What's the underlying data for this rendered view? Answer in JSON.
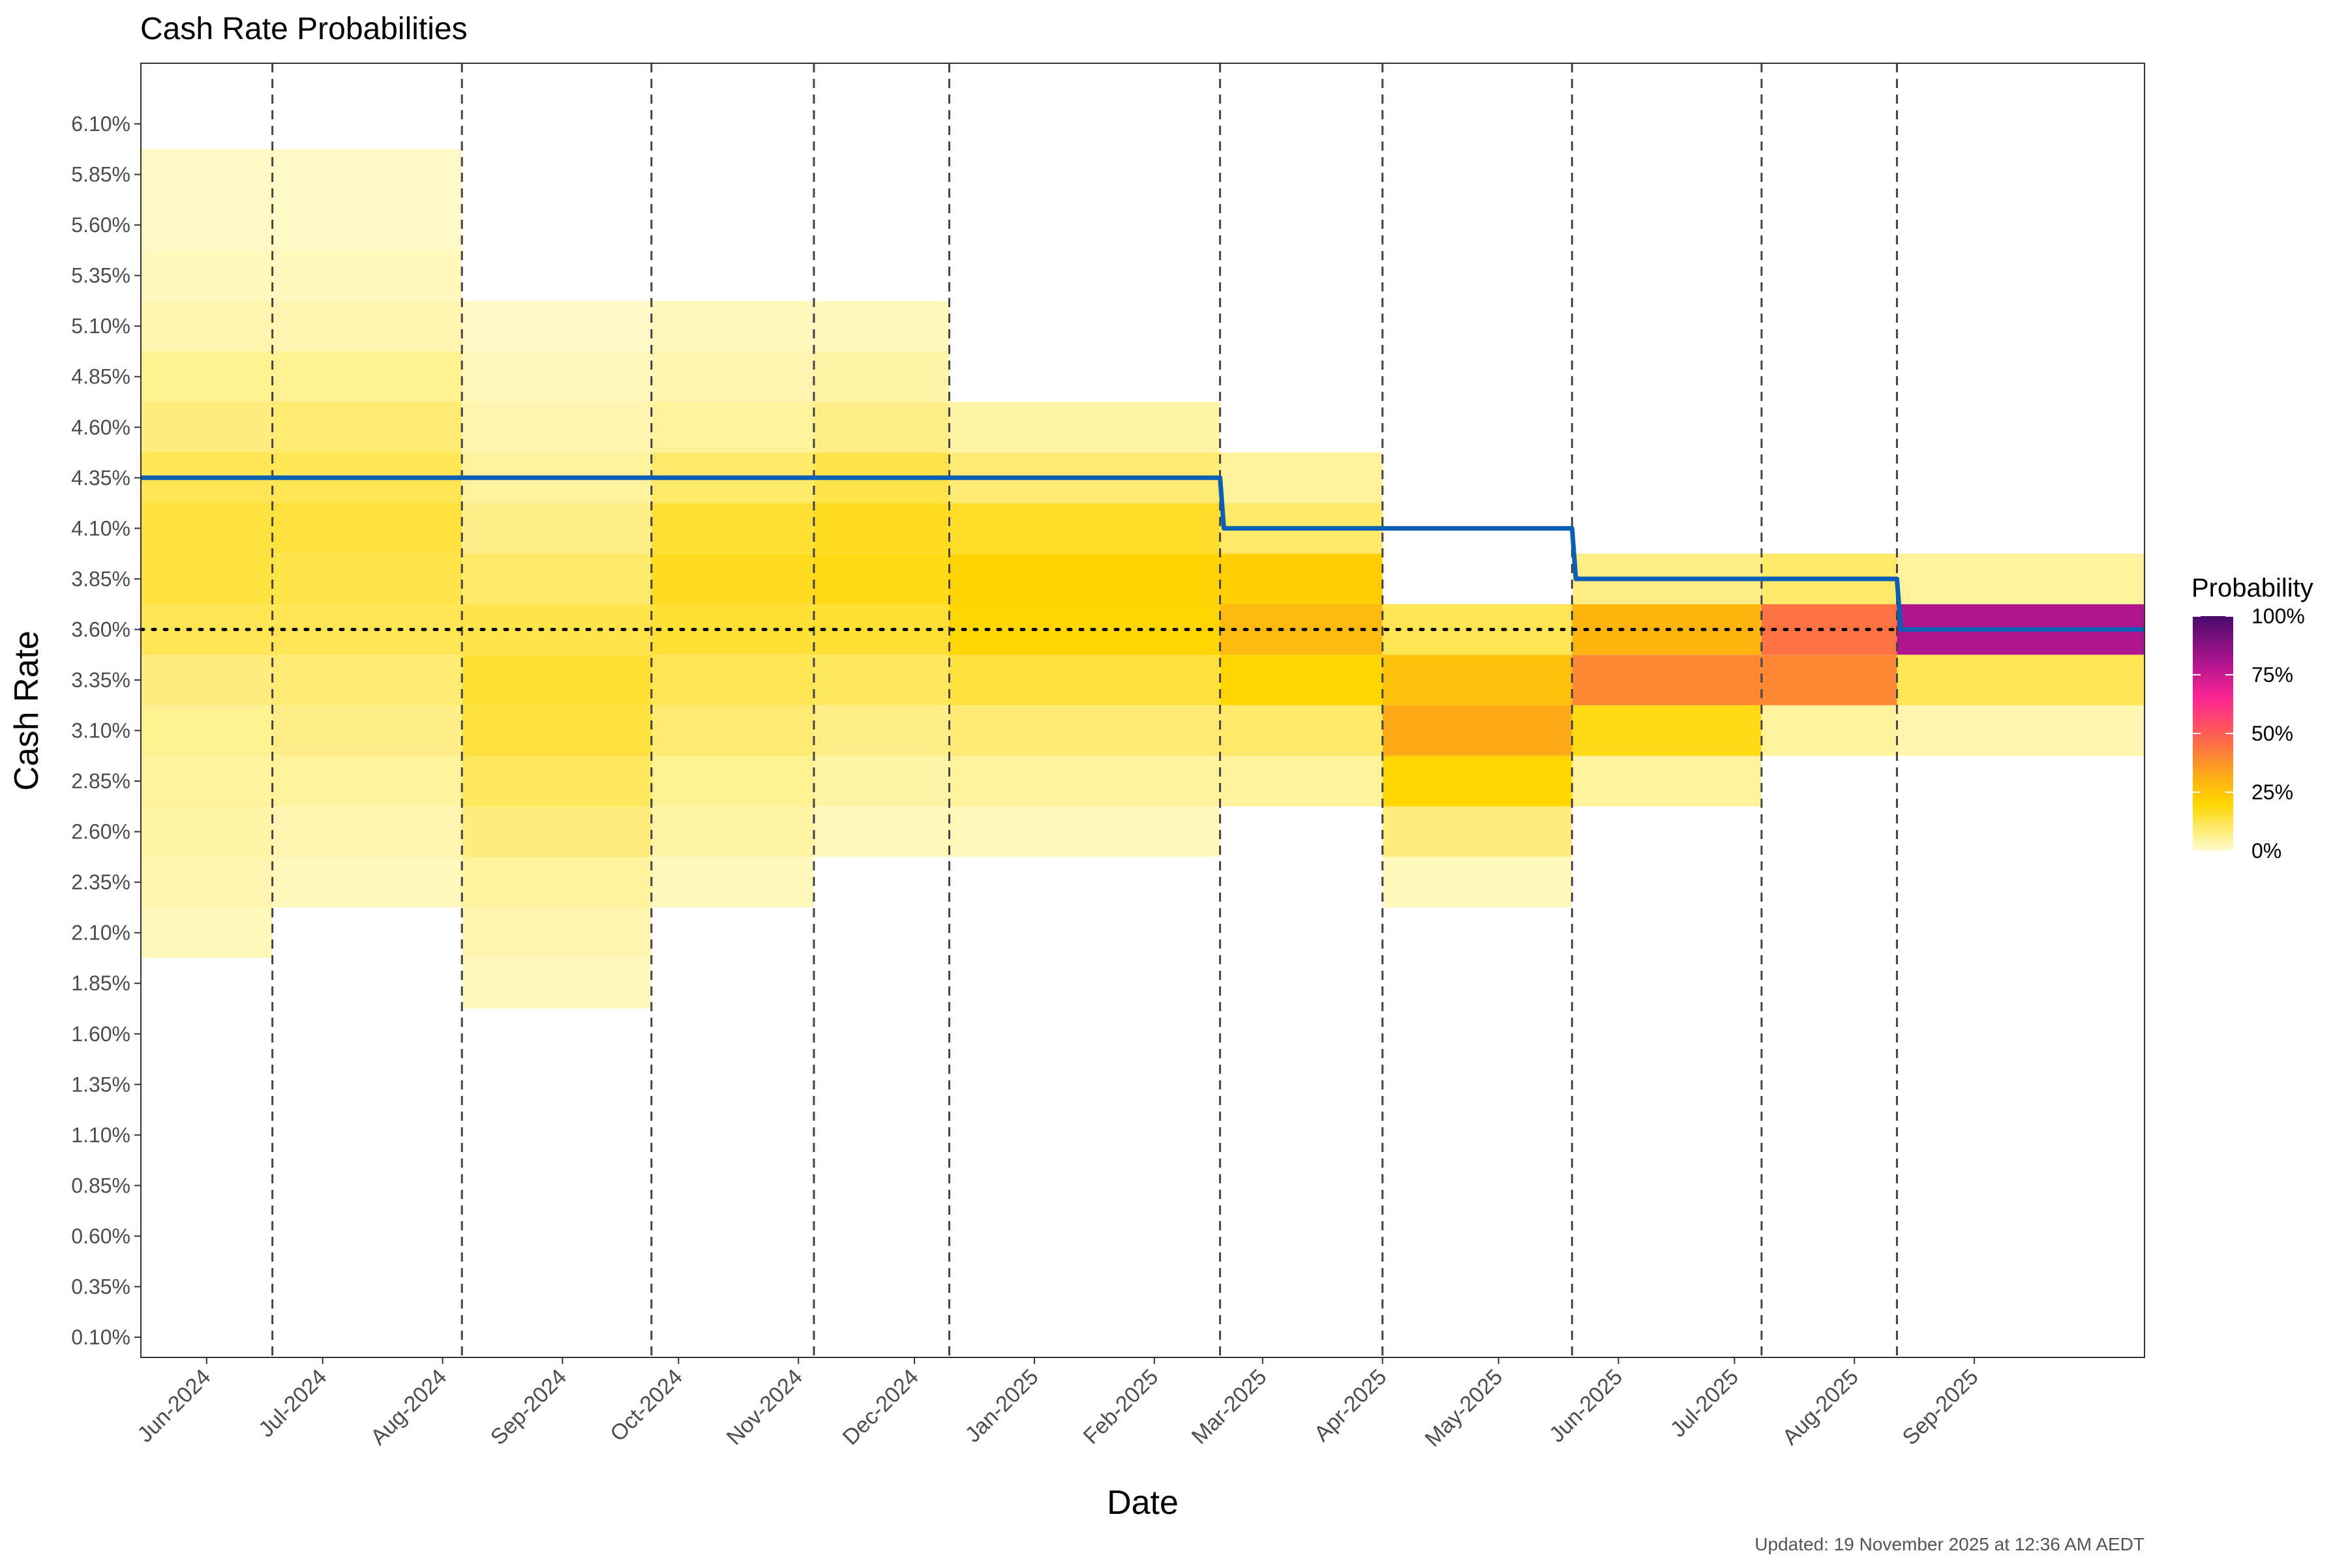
{
  "chart_data": {
    "type": "heatmap",
    "title": "Cash Rate Probabilities",
    "xlabel": "Date",
    "ylabel": "Cash Rate",
    "legend_title": "Probability",
    "legend_ticks": [
      "100%",
      "75%",
      "50%",
      "25%",
      "0%"
    ],
    "legend_position": "right",
    "caption": "Updated: 19 November 2025 at 12:36 AM AEDT",
    "x_range": [
      "2024-05-15",
      "2025-10-15"
    ],
    "y_range": [
      -0.0,
      6.4
    ],
    "x_ticks": [
      {
        "date": "2024-06-01",
        "label": "Jun-2024"
      },
      {
        "date": "2024-07-01",
        "label": "Jul-2024"
      },
      {
        "date": "2024-08-01",
        "label": "Aug-2024"
      },
      {
        "date": "2024-09-01",
        "label": "Sep-2024"
      },
      {
        "date": "2024-10-01",
        "label": "Oct-2024"
      },
      {
        "date": "2024-11-01",
        "label": "Nov-2024"
      },
      {
        "date": "2024-12-01",
        "label": "Dec-2024"
      },
      {
        "date": "2025-01-01",
        "label": "Jan-2025"
      },
      {
        "date": "2025-02-01",
        "label": "Feb-2025"
      },
      {
        "date": "2025-03-01",
        "label": "Mar-2025"
      },
      {
        "date": "2025-04-01",
        "label": "Apr-2025"
      },
      {
        "date": "2025-05-01",
        "label": "May-2025"
      },
      {
        "date": "2025-06-01",
        "label": "Jun-2025"
      },
      {
        "date": "2025-07-01",
        "label": "Jul-2025"
      },
      {
        "date": "2025-08-01",
        "label": "Aug-2025"
      },
      {
        "date": "2025-09-01",
        "label": "Sep-2025"
      }
    ],
    "y_ticks": [
      "0.10%",
      "0.35%",
      "0.60%",
      "0.85%",
      "1.10%",
      "1.35%",
      "1.60%",
      "1.85%",
      "2.10%",
      "2.35%",
      "2.60%",
      "2.85%",
      "3.10%",
      "3.35%",
      "3.60%",
      "3.85%",
      "4.10%",
      "4.35%",
      "4.60%",
      "4.85%",
      "5.10%",
      "5.35%",
      "5.60%",
      "5.85%",
      "6.10%"
    ],
    "y_tick_values": [
      0.1,
      0.35,
      0.6,
      0.85,
      1.1,
      1.35,
      1.6,
      1.85,
      2.1,
      2.35,
      2.6,
      2.85,
      3.1,
      3.35,
      3.6,
      3.85,
      4.1,
      4.35,
      4.6,
      4.85,
      5.1,
      5.35,
      5.6,
      5.85,
      6.1
    ],
    "meeting_dates": [
      "2024-06-18",
      "2024-08-06",
      "2024-09-24",
      "2024-11-05",
      "2024-12-10",
      "2025-02-18",
      "2025-04-01",
      "2025-05-20",
      "2025-07-08",
      "2025-08-12"
    ],
    "reference_line": {
      "rate": 3.6,
      "style": "dotted"
    },
    "cash_rate_series": {
      "name": "Cash rate",
      "color": "#0a5fb4",
      "points": [
        {
          "date": "2024-05-15",
          "rate": 4.35
        },
        {
          "date": "2025-02-18",
          "rate": 4.35
        },
        {
          "date": "2025-02-19",
          "rate": 4.1
        },
        {
          "date": "2025-05-20",
          "rate": 4.1
        },
        {
          "date": "2025-05-21",
          "rate": 3.85
        },
        {
          "date": "2025-08-12",
          "rate": 3.85
        },
        {
          "date": "2025-08-13",
          "rate": 3.6
        },
        {
          "date": "2025-10-15",
          "rate": 3.6
        }
      ]
    },
    "probability_bands": [
      {
        "start": "2024-05-15",
        "end": "2024-06-18",
        "rates": [
          2.1,
          2.35,
          2.6,
          2.85,
          3.1,
          3.35,
          3.6,
          3.85,
          4.1,
          4.35,
          4.6,
          4.85,
          5.1,
          5.35,
          5.6,
          5.85
        ],
        "probs": [
          0.02,
          0.03,
          0.04,
          0.05,
          0.06,
          0.08,
          0.12,
          0.14,
          0.14,
          0.12,
          0.08,
          0.06,
          0.03,
          0.02,
          0.01,
          0.01
        ]
      },
      {
        "start": "2024-06-18",
        "end": "2024-08-06",
        "rates": [
          2.35,
          2.6,
          2.85,
          3.1,
          3.35,
          3.6,
          3.85,
          4.1,
          4.35,
          4.6,
          4.85,
          5.1,
          5.35,
          5.6,
          5.85
        ],
        "probs": [
          0.02,
          0.03,
          0.05,
          0.07,
          0.09,
          0.12,
          0.13,
          0.14,
          0.12,
          0.09,
          0.06,
          0.03,
          0.02,
          0.01,
          0.01
        ]
      },
      {
        "start": "2024-08-06",
        "end": "2024-09-24",
        "rates": [
          1.85,
          2.1,
          2.35,
          2.6,
          2.85,
          3.1,
          3.35,
          3.6,
          3.85,
          4.1,
          4.35,
          4.6,
          4.85,
          5.1
        ],
        "probs": [
          0.02,
          0.03,
          0.05,
          0.08,
          0.11,
          0.14,
          0.15,
          0.13,
          0.1,
          0.07,
          0.05,
          0.03,
          0.02,
          0.01
        ]
      },
      {
        "start": "2024-09-24",
        "end": "2024-11-05",
        "rates": [
          2.35,
          2.6,
          2.85,
          3.1,
          3.35,
          3.6,
          3.85,
          4.1,
          4.35,
          4.6,
          4.85,
          5.1
        ],
        "probs": [
          0.02,
          0.04,
          0.06,
          0.09,
          0.12,
          0.15,
          0.17,
          0.15,
          0.1,
          0.05,
          0.03,
          0.02
        ]
      },
      {
        "start": "2024-11-05",
        "end": "2024-12-10",
        "rates": [
          2.6,
          2.85,
          3.1,
          3.35,
          3.6,
          3.85,
          4.1,
          4.35,
          4.6,
          4.85,
          5.1
        ],
        "probs": [
          0.02,
          0.04,
          0.07,
          0.11,
          0.15,
          0.18,
          0.17,
          0.13,
          0.07,
          0.04,
          0.02
        ]
      },
      {
        "start": "2024-12-10",
        "end": "2025-02-18",
        "rates": [
          2.6,
          2.85,
          3.1,
          3.35,
          3.6,
          3.85,
          4.1,
          4.35,
          4.6
        ],
        "probs": [
          0.02,
          0.05,
          0.09,
          0.14,
          0.2,
          0.21,
          0.16,
          0.09,
          0.04
        ]
      },
      {
        "start": "2025-02-18",
        "end": "2025-04-01",
        "rates": [
          2.85,
          3.1,
          3.35,
          3.6,
          3.85,
          4.1,
          4.35
        ],
        "probs": [
          0.05,
          0.1,
          0.2,
          0.28,
          0.22,
          0.1,
          0.05
        ]
      },
      {
        "start": "2025-04-01",
        "end": "2025-05-20",
        "rates": [
          2.35,
          2.6,
          2.85,
          3.1,
          3.35,
          3.6
        ],
        "probs": [
          0.02,
          0.08,
          0.2,
          0.32,
          0.26,
          0.12
        ]
      },
      {
        "start": "2025-05-20",
        "end": "2025-07-08",
        "rates": [
          2.85,
          3.1,
          3.35,
          3.6,
          3.85
        ],
        "probs": [
          0.05,
          0.18,
          0.4,
          0.3,
          0.07
        ]
      },
      {
        "start": "2025-07-08",
        "end": "2025-08-12",
        "rates": [
          3.1,
          3.35,
          3.6,
          3.85
        ],
        "probs": [
          0.05,
          0.4,
          0.45,
          0.1
        ]
      },
      {
        "start": "2025-08-12",
        "end": "2025-10-15",
        "rates": [
          3.1,
          3.35,
          3.6,
          3.85
        ],
        "probs": [
          0.03,
          0.12,
          0.8,
          0.05
        ]
      }
    ]
  }
}
